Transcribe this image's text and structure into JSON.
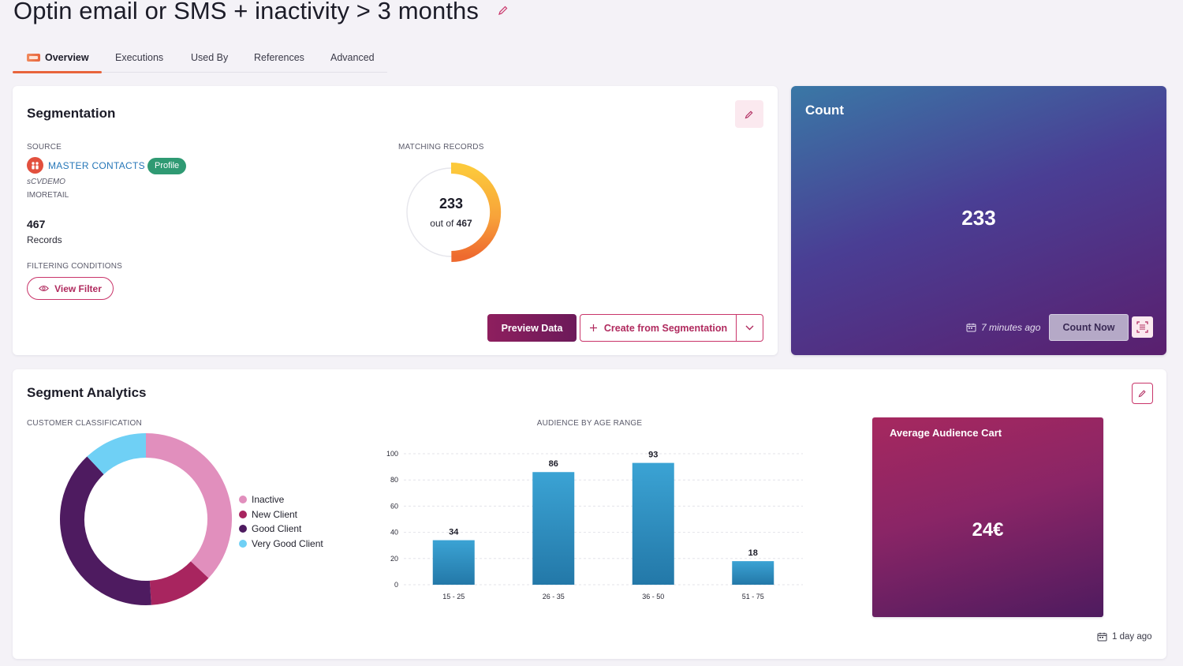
{
  "page": {
    "title": "Optin email or SMS + inactivity > 3 months"
  },
  "tabs": [
    {
      "label": "Overview"
    },
    {
      "label": "Executions"
    },
    {
      "label": "Used By"
    },
    {
      "label": "References"
    },
    {
      "label": "Advanced"
    }
  ],
  "segmentation": {
    "title": "Segmentation",
    "source_label": "SOURCE",
    "source_name": "MASTER CONTACTS",
    "source_badge": "Profile",
    "source_sub1": "sCVDEMO",
    "source_sub2": "IMORETAIL",
    "records_count": "467",
    "records_label": "Records",
    "filtering_label": "FILTERING CONDITIONS",
    "view_filter_label": "View Filter",
    "matching_label": "MATCHING RECORDS",
    "matching_value": "233",
    "matching_of_prefix": "out of",
    "matching_total": "467",
    "matching_fraction": 0.499,
    "preview_label": "Preview Data",
    "create_label": "Create from Segmentation"
  },
  "count": {
    "title": "Count",
    "value": "233",
    "updated": "7 minutes ago",
    "count_now_label": "Count Now"
  },
  "analytics": {
    "title": "Segment Analytics",
    "classification_label": "CUSTOMER CLASSIFICATION",
    "age_label": "AUDIENCE BY AGE RANGE",
    "avg_cart_title": "Average Audience Cart",
    "avg_cart_value": "24€",
    "updated": "1 day ago",
    "legend": [
      {
        "label": "Inactive",
        "color": "#e18fbd"
      },
      {
        "label": "New Client",
        "color": "#a8255f"
      },
      {
        "label": "Good Client",
        "color": "#4e1b60"
      },
      {
        "label": "Very Good Client",
        "color": "#6fd0f5"
      }
    ]
  },
  "chart_data": [
    {
      "type": "pie",
      "title": "CUSTOMER CLASSIFICATION",
      "categories": [
        "Inactive",
        "New Client",
        "Good Client",
        "Very Good Client"
      ],
      "values": [
        37,
        12,
        39,
        12
      ],
      "colors": [
        "#e18fbd",
        "#a8255f",
        "#4e1b60",
        "#6fd0f5"
      ],
      "style": "donut"
    },
    {
      "type": "bar",
      "title": "AUDIENCE BY AGE RANGE",
      "categories": [
        "15 - 25",
        "26 - 35",
        "36 - 50",
        "51 - 75"
      ],
      "values": [
        34,
        86,
        93,
        18
      ],
      "ylim": [
        0,
        100
      ],
      "yticks": [
        0,
        20,
        40,
        60,
        80,
        100
      ],
      "grid": true,
      "xlabel": "",
      "ylabel": ""
    }
  ]
}
